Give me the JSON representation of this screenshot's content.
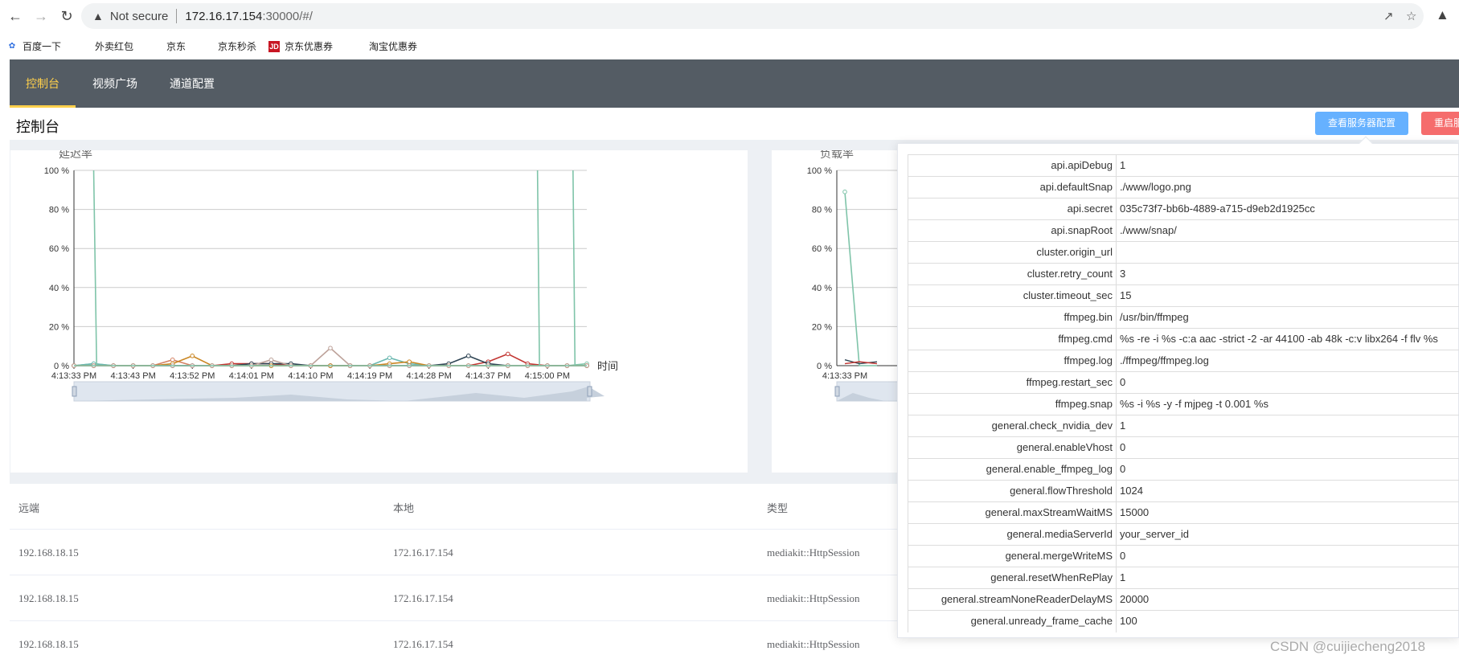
{
  "browser": {
    "security": "Not secure",
    "url_host": "172.16.17.154",
    "url_rest": ":30000/#/",
    "bookmarks": [
      "百度一下",
      "外卖红包",
      "京东",
      "京东秒杀",
      "京东优惠券",
      "淘宝优惠券"
    ]
  },
  "nav": {
    "items": [
      "控制台",
      "视频广场",
      "通道配置"
    ],
    "active": "控制台"
  },
  "page": {
    "title": "控制台",
    "btn_config": "查看服务器配置",
    "btn_restart": "重启服"
  },
  "charts": {
    "delay_title": "延迟率",
    "load_title": "负载率",
    "time_label": "时间"
  },
  "chart_data": [
    {
      "type": "line",
      "title": "延迟率",
      "xlabel": "时间",
      "ylabel": "",
      "ylim": [
        0,
        100
      ],
      "y_ticks": [
        "100 %",
        "80 %",
        "60 %",
        "40 %",
        "20 %",
        "0 %"
      ],
      "x_ticks": [
        "4:13:33 PM",
        "4:13:43 PM",
        "4:13:52 PM",
        "4:14:01 PM",
        "4:14:10 PM",
        "4:14:19 PM",
        "4:14:28 PM",
        "4:14:37 PM",
        "4:15:00 PM"
      ],
      "n": 27,
      "series": [
        {
          "color": "#7fc4a9",
          "values": [
            0,
            1,
            0,
            0,
            0,
            0,
            0,
            0,
            0,
            0,
            0,
            0,
            0,
            0,
            0,
            0,
            0,
            0,
            0,
            0,
            0,
            0,
            0,
            0,
            0,
            0,
            1
          ]
        },
        {
          "color": "#6ab8b0",
          "values": [
            0,
            1,
            0,
            0,
            0,
            0,
            0,
            0,
            0,
            0,
            0,
            0,
            0,
            0,
            0,
            0,
            4,
            1,
            0,
            0,
            0,
            0,
            0,
            0,
            0,
            0,
            0
          ]
        },
        {
          "color": "#c23531",
          "values": [
            0,
            0,
            0,
            0,
            0,
            0,
            0,
            0,
            1,
            1,
            1,
            0,
            0,
            0,
            0,
            0,
            0,
            0,
            0,
            0,
            0,
            2,
            6,
            1,
            0,
            0,
            0
          ]
        },
        {
          "color": "#2f4554",
          "values": [
            0,
            0,
            0,
            0,
            0,
            0,
            0,
            0,
            0,
            1,
            1,
            1,
            0,
            0,
            0,
            0,
            0,
            0,
            0,
            1,
            5,
            1,
            0,
            0,
            0,
            0,
            0
          ]
        },
        {
          "color": "#d48265",
          "values": [
            0,
            0,
            0,
            0,
            0,
            3,
            0,
            0,
            0,
            0,
            0,
            0,
            0,
            0,
            0,
            0,
            0,
            0,
            0,
            0,
            0,
            0,
            0,
            0,
            0,
            0,
            0
          ]
        },
        {
          "color": "#ca8622",
          "values": [
            0,
            0,
            0,
            0,
            0,
            1,
            5,
            0,
            0,
            0,
            0,
            0,
            0,
            0,
            0,
            0,
            1,
            2,
            0,
            0,
            0,
            0,
            0,
            0,
            0,
            0,
            0
          ]
        },
        {
          "color": "#bda29a",
          "values": [
            0,
            0,
            0,
            0,
            0,
            0,
            0,
            0,
            0,
            0,
            3,
            0,
            0,
            9,
            0,
            0,
            0,
            0,
            0,
            0,
            0,
            0,
            0,
            0,
            0,
            0,
            0
          ]
        },
        {
          "color": "#7fc4a9",
          "values": [
            0,
            0,
            0,
            0,
            0,
            0,
            0,
            0,
            0,
            0,
            0,
            0,
            0,
            0,
            0,
            0,
            0,
            0,
            0,
            0,
            0,
            0,
            0,
            0,
            0,
            0,
            0
          ]
        }
      ],
      "spikes_to_100": [
        {
          "from": 1,
          "to": 1.15
        },
        {
          "from": 23.5,
          "to": 23.6
        },
        {
          "from": 25.3,
          "to": 25.4
        }
      ]
    },
    {
      "type": "line",
      "title": "负载率",
      "ylim": [
        0,
        100
      ],
      "y_ticks": [
        "100 %",
        "80 %",
        "60 %",
        "40 %",
        "20 %",
        "0 %"
      ],
      "x_ticks": [
        "4:13:33 PM"
      ],
      "visible_values": [
        89,
        0,
        3
      ]
    }
  ],
  "sessions": {
    "columns": [
      "远端",
      "本地",
      "类型"
    ],
    "rows": [
      [
        "192.168.18.15",
        "172.16.17.154",
        "mediakit::HttpSession"
      ],
      [
        "192.168.18.15",
        "172.16.17.154",
        "mediakit::HttpSession"
      ],
      [
        "192.168.18.15",
        "172.16.17.154",
        "mediakit::HttpSession"
      ]
    ]
  },
  "config": [
    [
      "api.apiDebug",
      "1"
    ],
    [
      "api.defaultSnap",
      "./www/logo.png"
    ],
    [
      "api.secret",
      "035c73f7-bb6b-4889-a715-d9eb2d1925cc"
    ],
    [
      "api.snapRoot",
      "./www/snap/"
    ],
    [
      "cluster.origin_url",
      ""
    ],
    [
      "cluster.retry_count",
      "3"
    ],
    [
      "cluster.timeout_sec",
      "15"
    ],
    [
      "ffmpeg.bin",
      "/usr/bin/ffmpeg"
    ],
    [
      "ffmpeg.cmd",
      "%s -re -i %s -c:a aac -strict -2 -ar 44100 -ab 48k -c:v libx264 -f flv %s"
    ],
    [
      "ffmpeg.log",
      "./ffmpeg/ffmpeg.log"
    ],
    [
      "ffmpeg.restart_sec",
      "0"
    ],
    [
      "ffmpeg.snap",
      "%s -i %s -y -f mjpeg -t 0.001 %s"
    ],
    [
      "general.check_nvidia_dev",
      "1"
    ],
    [
      "general.enableVhost",
      "0"
    ],
    [
      "general.enable_ffmpeg_log",
      "0"
    ],
    [
      "general.flowThreshold",
      "1024"
    ],
    [
      "general.maxStreamWaitMS",
      "15000"
    ],
    [
      "general.mediaServerId",
      "your_server_id"
    ],
    [
      "general.mergeWriteMS",
      "0"
    ],
    [
      "general.resetWhenRePlay",
      "1"
    ],
    [
      "general.streamNoneReaderDelayMS",
      "20000"
    ],
    [
      "general.unready_frame_cache",
      "100"
    ]
  ],
  "watermark": "CSDN @cuijiecheng2018"
}
